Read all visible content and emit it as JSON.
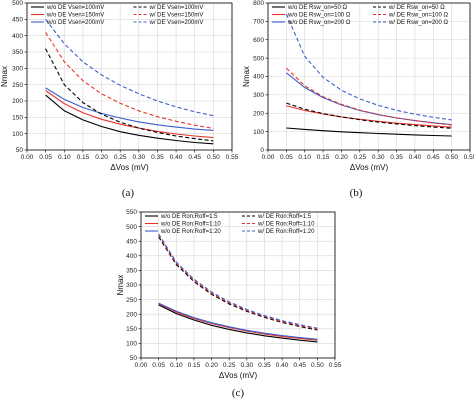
{
  "chart_data": [
    {
      "id": "a",
      "type": "line",
      "caption": "(a)",
      "xlabel": "ΔVos (mV)",
      "ylabel": "Nmax",
      "xlim": [
        0.0,
        0.55
      ],
      "ylim": [
        50,
        500
      ],
      "xticks": [
        "0.00",
        "0.05",
        "0.10",
        "0.15",
        "0.20",
        "0.25",
        "0.30",
        "0.35",
        "0.40",
        "0.45",
        "0.50",
        "0.55"
      ],
      "yticks": [
        "50",
        "100",
        "150",
        "200",
        "250",
        "300",
        "350",
        "400",
        "450",
        "500"
      ],
      "grid": true,
      "legend_position": "top",
      "x": [
        0.05,
        0.1,
        0.15,
        0.2,
        0.25,
        0.3,
        0.35,
        0.4,
        0.45,
        0.5
      ],
      "series": [
        {
          "name": "w/o DE Vsen=100mV",
          "color": "#000000",
          "dash": "solid",
          "values": [
            218,
            170,
            142,
            122,
            106,
            95,
            86,
            79,
            73,
            69
          ]
        },
        {
          "name": "w/o DE Vsen=150mV",
          "color": "#e8342c",
          "dash": "solid",
          "values": [
            232,
            192,
            164,
            144,
            129,
            117,
            107,
            99,
            93,
            88
          ]
        },
        {
          "name": "w/o DE Vsen=200mV",
          "color": "#3a5fcd",
          "dash": "solid",
          "values": [
            240,
            205,
            180,
            162,
            148,
            136,
            127,
            120,
            114,
            110
          ]
        },
        {
          "name": "w/ DE Vsen=100mV",
          "color": "#000000",
          "dash": "dashed",
          "values": [
            360,
            250,
            195,
            160,
            135,
            117,
            104,
            93,
            85,
            78
          ]
        },
        {
          "name": "w/ DE Vsen=150mV",
          "color": "#e8342c",
          "dash": "dashed",
          "values": [
            410,
            320,
            262,
            222,
            193,
            170,
            152,
            138,
            126,
            116
          ]
        },
        {
          "name": "w/ DE Vsen=200mV",
          "color": "#3a5fcd",
          "dash": "dashed",
          "values": [
            450,
            375,
            320,
            280,
            248,
            222,
            200,
            182,
            167,
            155
          ]
        }
      ]
    },
    {
      "id": "b",
      "type": "line",
      "caption": "(b)",
      "xlabel": "ΔVos (mV)",
      "ylabel": "Nmax",
      "xlim": [
        0.0,
        0.55
      ],
      "ylim": [
        0,
        800
      ],
      "xticks": [
        "0.00",
        "0.05",
        "0.10",
        "0.15",
        "0.20",
        "0.25",
        "0.30",
        "0.35",
        "0.40",
        "0.45",
        "0.50",
        "0.55"
      ],
      "yticks": [
        "0",
        "100",
        "200",
        "300",
        "400",
        "500",
        "600",
        "700",
        "800"
      ],
      "grid": true,
      "legend_position": "top",
      "x": [
        0.05,
        0.1,
        0.15,
        0.2,
        0.25,
        0.3,
        0.35,
        0.4,
        0.45,
        0.5
      ],
      "series": [
        {
          "name": "w/o DE Rsw_on=50 Ω",
          "color": "#000000",
          "dash": "solid",
          "values": [
            120,
            112,
            105,
            99,
            94,
            90,
            86,
            82,
            79,
            76
          ]
        },
        {
          "name": "w/o DE Rsw_on=100 Ω",
          "color": "#e8342c",
          "dash": "solid",
          "values": [
            240,
            215,
            196,
            180,
            167,
            156,
            146,
            138,
            131,
            124
          ]
        },
        {
          "name": "w/o DE Rsw_on=200 Ω",
          "color": "#3a5fcd",
          "dash": "solid",
          "values": [
            420,
            340,
            285,
            245,
            215,
            192,
            174,
            160,
            148,
            138
          ]
        },
        {
          "name": "w/ DE Rsw_on=50 Ω",
          "color": "#000000",
          "dash": "dashed",
          "values": [
            255,
            222,
            198,
            180,
            165,
            152,
            142,
            133,
            125,
            118
          ]
        },
        {
          "name": "w/ DE Rsw_on=100 Ω",
          "color": "#e8342c",
          "dash": "dashed",
          "values": [
            445,
            350,
            290,
            248,
            217,
            193,
            175,
            160,
            147,
            136
          ]
        },
        {
          "name": "w/ DE Rsw_on=200 Ω",
          "color": "#3a5fcd",
          "dash": "dashed",
          "values": [
            740,
            510,
            395,
            325,
            278,
            243,
            216,
            195,
            178,
            164
          ]
        }
      ]
    },
    {
      "id": "c",
      "type": "line",
      "caption": "(c)",
      "xlabel": "ΔVos (mV)",
      "ylabel": "Nmax",
      "xlim": [
        0.0,
        0.55
      ],
      "ylim": [
        50,
        550
      ],
      "xticks": [
        "0.00",
        "0.05",
        "0.10",
        "0.15",
        "0.20",
        "0.25",
        "0.30",
        "0.35",
        "0.40",
        "0.45",
        "0.50",
        "0.55"
      ],
      "yticks": [
        "50",
        "100",
        "150",
        "200",
        "250",
        "300",
        "350",
        "400",
        "450",
        "500",
        "550"
      ],
      "grid": true,
      "legend_position": "top",
      "x": [
        0.05,
        0.1,
        0.15,
        0.2,
        0.25,
        0.3,
        0.35,
        0.4,
        0.45,
        0.5
      ],
      "series": [
        {
          "name": "w/o DE Ron:Roff=1:5",
          "color": "#000000",
          "dash": "solid",
          "values": [
            232,
            202,
            180,
            162,
            148,
            136,
            126,
            118,
            111,
            105
          ]
        },
        {
          "name": "w/o DE Ron:Roff=1:10",
          "color": "#e8342c",
          "dash": "solid",
          "values": [
            236,
            207,
            185,
            168,
            154,
            142,
            132,
            124,
            117,
            111
          ]
        },
        {
          "name": "w/o DE Ron:Roff=1:20",
          "color": "#3a5fcd",
          "dash": "solid",
          "values": [
            238,
            210,
            188,
            171,
            157,
            145,
            135,
            127,
            120,
            114
          ]
        },
        {
          "name": "w/ DE Ron:Roff=1:5",
          "color": "#000000",
          "dash": "dashed",
          "values": [
            465,
            370,
            312,
            268,
            235,
            210,
            189,
            172,
            158,
            146
          ]
        },
        {
          "name": "w/ DE Ron:Roff=1:10",
          "color": "#e8342c",
          "dash": "dashed",
          "values": [
            470,
            375,
            316,
            272,
            239,
            213,
            192,
            175,
            161,
            149
          ]
        },
        {
          "name": "w/ DE Ron:Roff=1:20",
          "color": "#3a5fcd",
          "dash": "dashed",
          "values": [
            475,
            378,
            320,
            276,
            242,
            216,
            195,
            178,
            164,
            152
          ]
        }
      ]
    }
  ]
}
